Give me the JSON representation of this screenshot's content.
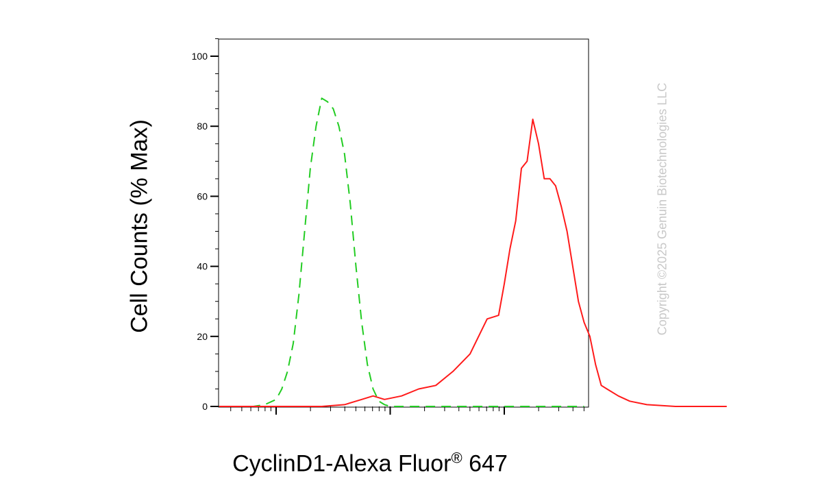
{
  "chart_data": {
    "type": "line",
    "ylabel": "Cell Counts (% Max)",
    "xlabel": {
      "text": "CyclinD1-Alexa Fluor",
      "superscript": "®",
      "suffix": " 647"
    },
    "ylim": [
      0,
      105
    ],
    "yticks": [
      "0",
      "20",
      "40",
      "60",
      "80",
      "100"
    ],
    "ytick_values": [
      0,
      20,
      40,
      60,
      80,
      100
    ],
    "x_scale": "log",
    "grid": false,
    "series": [
      {
        "style": "dashed",
        "color": "#22cc22",
        "points": [
          [
            0.0,
            0
          ],
          [
            0.3,
            0
          ],
          [
            0.4,
            0.5
          ],
          [
            0.5,
            2
          ],
          [
            0.55,
            5
          ],
          [
            0.6,
            10
          ],
          [
            0.65,
            18
          ],
          [
            0.7,
            32
          ],
          [
            0.75,
            50
          ],
          [
            0.8,
            68
          ],
          [
            0.85,
            80
          ],
          [
            0.9,
            88
          ],
          [
            0.95,
            87
          ],
          [
            1.0,
            85
          ],
          [
            1.05,
            80
          ],
          [
            1.1,
            72
          ],
          [
            1.15,
            58
          ],
          [
            1.2,
            40
          ],
          [
            1.25,
            24
          ],
          [
            1.3,
            12
          ],
          [
            1.35,
            5
          ],
          [
            1.4,
            1.5
          ],
          [
            1.45,
            0.5
          ],
          [
            1.5,
            0
          ],
          [
            3.2,
            0
          ]
        ]
      },
      {
        "style": "solid",
        "color": "#ff1a1a",
        "points": [
          [
            0.0,
            0
          ],
          [
            0.9,
            0
          ],
          [
            1.1,
            0.5
          ],
          [
            1.25,
            2
          ],
          [
            1.35,
            3
          ],
          [
            1.45,
            2
          ],
          [
            1.6,
            3
          ],
          [
            1.75,
            5
          ],
          [
            1.9,
            6
          ],
          [
            2.05,
            10
          ],
          [
            2.2,
            15
          ],
          [
            2.35,
            25
          ],
          [
            2.45,
            26
          ],
          [
            2.5,
            35
          ],
          [
            2.55,
            45
          ],
          [
            2.6,
            53
          ],
          [
            2.65,
            68
          ],
          [
            2.7,
            70
          ],
          [
            2.75,
            82
          ],
          [
            2.8,
            75
          ],
          [
            2.85,
            65
          ],
          [
            2.9,
            65
          ],
          [
            2.95,
            63
          ],
          [
            3.0,
            57
          ],
          [
            3.05,
            50
          ],
          [
            3.1,
            40
          ],
          [
            3.15,
            30
          ],
          [
            3.2,
            24
          ],
          [
            3.25,
            20
          ],
          [
            3.3,
            12
          ],
          [
            3.35,
            6
          ],
          [
            3.4,
            5
          ],
          [
            3.5,
            3
          ],
          [
            3.6,
            1.5
          ],
          [
            3.75,
            0.5
          ],
          [
            4.0,
            0
          ],
          [
            4.45,
            0
          ]
        ]
      }
    ]
  },
  "copyright": "Copyright ©2025 Genuin Biotechnologies LLC"
}
